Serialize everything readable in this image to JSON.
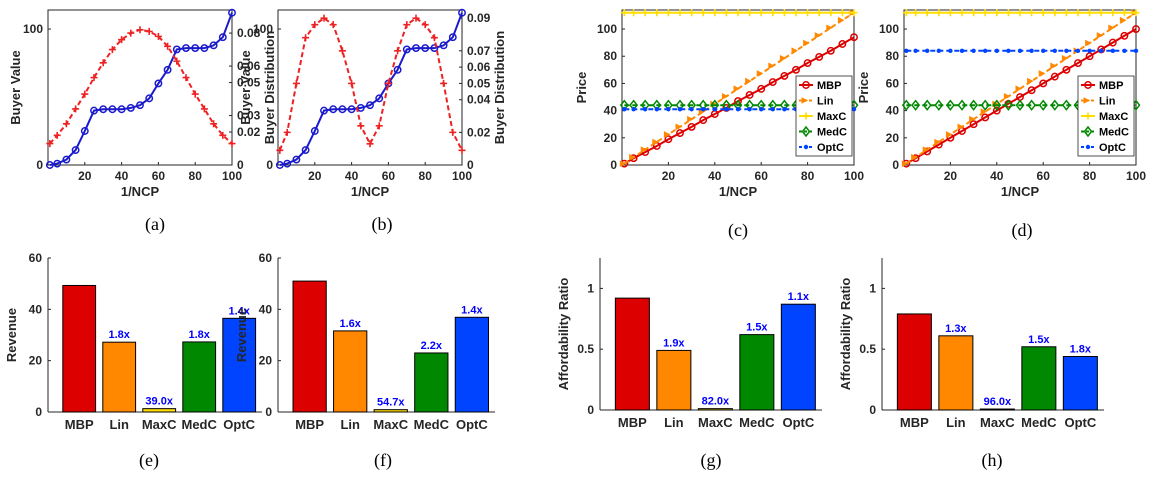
{
  "captions": [
    "(a)",
    "(b)",
    "(c)",
    "(d)",
    "(e)",
    "(f)",
    "(g)",
    "(h)"
  ],
  "colors": {
    "MBP": "#dd0000",
    "Lin": "#ff8800",
    "MaxC": "#ffdd00",
    "MedC": "#008800",
    "OptC": "#0044ff",
    "buyer_value": "#1a1acc",
    "buyer_dist": "#ee2222",
    "left_axis": "#1f77b4",
    "right_axis": "#d95319"
  },
  "chart_data": [
    {
      "type": "line",
      "xlabel": "1/NCP",
      "ylabel": "Buyer Value",
      "ylabel_right": "Buyer Distribution",
      "xlim": [
        0,
        100
      ],
      "ylim": [
        0,
        114
      ],
      "ylim_right": [
        0,
        0.094
      ],
      "xticks": [
        "20",
        "40",
        "60",
        "80",
        "100"
      ],
      "yticks": [
        "0",
        "100"
      ],
      "yticks_right": [
        "0",
        "0.02",
        "0.03",
        "0.05",
        "0.06",
        "0.08"
      ],
      "series": [
        {
          "name": "Buyer Value",
          "axis": "left",
          "marker": "circle",
          "style": "solid",
          "x": [
            1,
            5,
            10,
            15,
            20,
            25,
            30,
            35,
            40,
            45,
            50,
            55,
            60,
            65,
            70,
            75,
            80,
            85,
            90,
            95,
            100
          ],
          "y": [
            0,
            1,
            4,
            11,
            25,
            40,
            41,
            41,
            41,
            42,
            44,
            49,
            60,
            70,
            85,
            86,
            86,
            86,
            88,
            94,
            112
          ]
        },
        {
          "name": "Buyer Distribution",
          "axis": "right",
          "marker": "plus",
          "style": "dashed",
          "x": [
            1,
            5,
            10,
            15,
            20,
            25,
            30,
            35,
            40,
            45,
            50,
            55,
            60,
            65,
            70,
            75,
            80,
            85,
            90,
            95,
            100
          ],
          "y": [
            0.013,
            0.018,
            0.025,
            0.034,
            0.043,
            0.053,
            0.062,
            0.07,
            0.076,
            0.08,
            0.082,
            0.081,
            0.078,
            0.072,
            0.063,
            0.053,
            0.043,
            0.034,
            0.025,
            0.018,
            0.013
          ]
        }
      ]
    },
    {
      "type": "line",
      "xlabel": "1/NCP",
      "ylabel": "Buyer Value",
      "ylabel_right": "Buyer Distribution",
      "xlim": [
        0,
        100
      ],
      "ylim": [
        0,
        114
      ],
      "ylim_right": [
        0,
        0.095
      ],
      "xticks": [
        "20",
        "40",
        "60",
        "80",
        "100"
      ],
      "yticks": [
        "0",
        "100"
      ],
      "yticks_right": [
        "0",
        "0.02",
        "0.04",
        "0.05",
        "0.06",
        "0.07",
        "0.09"
      ],
      "series": [
        {
          "name": "Buyer Value",
          "axis": "left",
          "marker": "circle",
          "style": "solid",
          "x": [
            1,
            5,
            10,
            15,
            20,
            25,
            30,
            35,
            40,
            45,
            50,
            55,
            60,
            65,
            70,
            75,
            80,
            85,
            90,
            95,
            100
          ],
          "y": [
            0,
            1,
            4,
            11,
            25,
            40,
            41,
            41,
            41,
            42,
            44,
            49,
            60,
            70,
            85,
            86,
            86,
            86,
            88,
            94,
            112
          ]
        },
        {
          "name": "Buyer Distribution",
          "axis": "right",
          "marker": "plus",
          "style": "dashed",
          "x": [
            1,
            5,
            10,
            15,
            20,
            25,
            30,
            35,
            40,
            45,
            50,
            55,
            60,
            65,
            70,
            75,
            80,
            85,
            90,
            95,
            100
          ],
          "y": [
            0.009,
            0.02,
            0.05,
            0.078,
            0.086,
            0.09,
            0.086,
            0.07,
            0.05,
            0.024,
            0.013,
            0.024,
            0.05,
            0.07,
            0.086,
            0.09,
            0.086,
            0.078,
            0.05,
            0.02,
            0.009
          ]
        }
      ]
    },
    {
      "type": "line",
      "xlabel": "1/NCP",
      "ylabel": "Price",
      "xlim": [
        0,
        100
      ],
      "ylim": [
        0,
        114
      ],
      "xticks": [
        "20",
        "40",
        "60",
        "80",
        "100"
      ],
      "yticks": [
        "0",
        "20",
        "40",
        "60",
        "80",
        "100"
      ],
      "legend": "middle-right",
      "series": [
        {
          "name": "MBP",
          "marker": "circle",
          "style": "solid",
          "x": [
            1,
            5,
            10,
            15,
            20,
            25,
            30,
            35,
            40,
            45,
            50,
            55,
            60,
            65,
            70,
            75,
            80,
            85,
            90,
            95,
            100
          ],
          "y": [
            1,
            5,
            9.5,
            14,
            19,
            23.5,
            28,
            33,
            37.5,
            42,
            47,
            51.5,
            56,
            61,
            65.5,
            70,
            75,
            79.5,
            84,
            89,
            94
          ]
        },
        {
          "name": "Lin",
          "marker": "arrow",
          "style": "dashed",
          "x": [
            1,
            5,
            10,
            15,
            20,
            25,
            30,
            35,
            40,
            45,
            50,
            55,
            60,
            65,
            70,
            75,
            80,
            85,
            90,
            95,
            100
          ],
          "y": [
            1,
            5.7,
            11.3,
            16.9,
            22.5,
            28.1,
            33.7,
            39.3,
            44.9,
            50.5,
            56.1,
            61.7,
            67.3,
            72.9,
            78.5,
            84.1,
            89.7,
            95.3,
            100.9,
            106.5,
            112
          ]
        },
        {
          "name": "MaxC",
          "marker": "plus",
          "style": "solid",
          "x": [
            1,
            5,
            10,
            15,
            20,
            25,
            30,
            35,
            40,
            45,
            50,
            55,
            60,
            65,
            70,
            75,
            80,
            85,
            90,
            95,
            100
          ],
          "y": [
            112,
            112,
            112,
            112,
            112,
            112,
            112,
            112,
            112,
            112,
            112,
            112,
            112,
            112,
            112,
            112,
            112,
            112,
            112,
            112,
            112
          ]
        },
        {
          "name": "MedC",
          "marker": "diamond",
          "style": "dashed",
          "x": [
            1,
            5,
            10,
            15,
            20,
            25,
            30,
            35,
            40,
            45,
            50,
            55,
            60,
            65,
            70,
            75,
            80,
            85,
            90,
            95,
            100
          ],
          "y": [
            44,
            44,
            44,
            44,
            44,
            44,
            44,
            44,
            44,
            44,
            44,
            44,
            44,
            44,
            44,
            44,
            44,
            44,
            44,
            44,
            44
          ]
        },
        {
          "name": "OptC",
          "marker": "dot",
          "style": "dashed",
          "x": [
            1,
            5,
            10,
            15,
            20,
            25,
            30,
            35,
            40,
            45,
            50,
            55,
            60,
            65,
            70,
            75,
            80,
            85,
            90,
            95,
            100
          ],
          "y": [
            41,
            41,
            41,
            41,
            41,
            41,
            41,
            41,
            41,
            41,
            41,
            41,
            41,
            41,
            41,
            41,
            41,
            41,
            41,
            41,
            41
          ]
        }
      ]
    },
    {
      "type": "line",
      "xlabel": "1/NCP",
      "ylabel": "Price",
      "xlim": [
        0,
        100
      ],
      "ylim": [
        0,
        114
      ],
      "xticks": [
        "20",
        "40",
        "60",
        "80",
        "100"
      ],
      "yticks": [
        "0",
        "20",
        "40",
        "60",
        "80",
        "100"
      ],
      "legend": "middle-right",
      "series": [
        {
          "name": "MBP",
          "marker": "circle",
          "style": "solid",
          "x": [
            1,
            5,
            10,
            15,
            20,
            25,
            30,
            35,
            40,
            45,
            50,
            55,
            60,
            65,
            70,
            75,
            80,
            85,
            90,
            95,
            100
          ],
          "y": [
            1,
            5,
            10,
            15,
            20,
            25,
            30,
            35,
            40,
            45,
            50,
            55,
            60,
            65,
            70,
            75,
            80,
            85,
            90,
            95,
            100
          ]
        },
        {
          "name": "Lin",
          "marker": "arrow",
          "style": "dashed",
          "x": [
            1,
            5,
            10,
            15,
            20,
            25,
            30,
            35,
            40,
            45,
            50,
            55,
            60,
            65,
            70,
            75,
            80,
            85,
            90,
            95,
            100
          ],
          "y": [
            1,
            5.7,
            11.3,
            16.9,
            22.5,
            28.1,
            33.7,
            39.3,
            44.9,
            50.5,
            56.1,
            61.7,
            67.3,
            72.9,
            78.5,
            84.1,
            89.7,
            95.3,
            100.9,
            106.5,
            112
          ]
        },
        {
          "name": "MaxC",
          "marker": "plus",
          "style": "solid",
          "x": [
            1,
            5,
            10,
            15,
            20,
            25,
            30,
            35,
            40,
            45,
            50,
            55,
            60,
            65,
            70,
            75,
            80,
            85,
            90,
            95,
            100
          ],
          "y": [
            112,
            112,
            112,
            112,
            112,
            112,
            112,
            112,
            112,
            112,
            112,
            112,
            112,
            112,
            112,
            112,
            112,
            112,
            112,
            112,
            112
          ]
        },
        {
          "name": "MedC",
          "marker": "diamond",
          "style": "dashed",
          "x": [
            1,
            5,
            10,
            15,
            20,
            25,
            30,
            35,
            40,
            45,
            50,
            55,
            60,
            65,
            70,
            75,
            80,
            85,
            90,
            95,
            100
          ],
          "y": [
            44,
            44,
            44,
            44,
            44,
            44,
            44,
            44,
            44,
            44,
            44,
            44,
            44,
            44,
            44,
            44,
            44,
            44,
            44,
            44,
            44
          ]
        },
        {
          "name": "OptC",
          "marker": "dot",
          "style": "dashed",
          "x": [
            1,
            5,
            10,
            15,
            20,
            25,
            30,
            35,
            40,
            45,
            50,
            55,
            60,
            65,
            70,
            75,
            80,
            85,
            90,
            95,
            100
          ],
          "y": [
            84,
            84,
            84,
            84,
            84,
            84,
            84,
            84,
            84,
            84,
            84,
            84,
            84,
            84,
            84,
            84,
            84,
            84,
            84,
            84,
            84
          ]
        }
      ]
    },
    {
      "type": "bar",
      "ylabel": "Revenue",
      "ylim": [
        0,
        60
      ],
      "yticks": [
        "0",
        "20",
        "40",
        "60"
      ],
      "categories": [
        "MBP",
        "Lin",
        "MaxC",
        "MedC",
        "OptC"
      ],
      "values": [
        49.3,
        27.2,
        1.3,
        27.3,
        36.5
      ],
      "labels": [
        "",
        "1.8x",
        "39.0x",
        "1.8x",
        "1.4x"
      ]
    },
    {
      "type": "bar",
      "ylabel": "Revenue",
      "ylim": [
        0,
        60
      ],
      "yticks": [
        "0",
        "20",
        "40",
        "60"
      ],
      "categories": [
        "MBP",
        "Lin",
        "MaxC",
        "MedC",
        "OptC"
      ],
      "values": [
        51,
        31.6,
        0.9,
        23,
        36.9
      ],
      "labels": [
        "",
        "1.6x",
        "54.7x",
        "2.2x",
        "1.4x"
      ]
    },
    {
      "type": "bar",
      "ylabel": "Affordability Ratio",
      "ylim": [
        0,
        1.25
      ],
      "yticks": [
        "0",
        "0.5",
        "1"
      ],
      "categories": [
        "MBP",
        "Lin",
        "MaxC",
        "MedC",
        "OptC"
      ],
      "values": [
        0.92,
        0.49,
        0.011,
        0.62,
        0.87
      ],
      "labels": [
        "",
        "1.9x",
        "82.0x",
        "1.5x",
        "1.1x"
      ]
    },
    {
      "type": "bar",
      "ylabel": "Affordability Ratio",
      "ylim": [
        0,
        1.25
      ],
      "yticks": [
        "0",
        "0.5",
        "1"
      ],
      "categories": [
        "MBP",
        "Lin",
        "MaxC",
        "MedC",
        "OptC"
      ],
      "values": [
        0.79,
        0.61,
        0.008,
        0.52,
        0.44
      ],
      "labels": [
        "",
        "1.3x",
        "96.0x",
        "1.5x",
        "1.8x"
      ]
    }
  ]
}
